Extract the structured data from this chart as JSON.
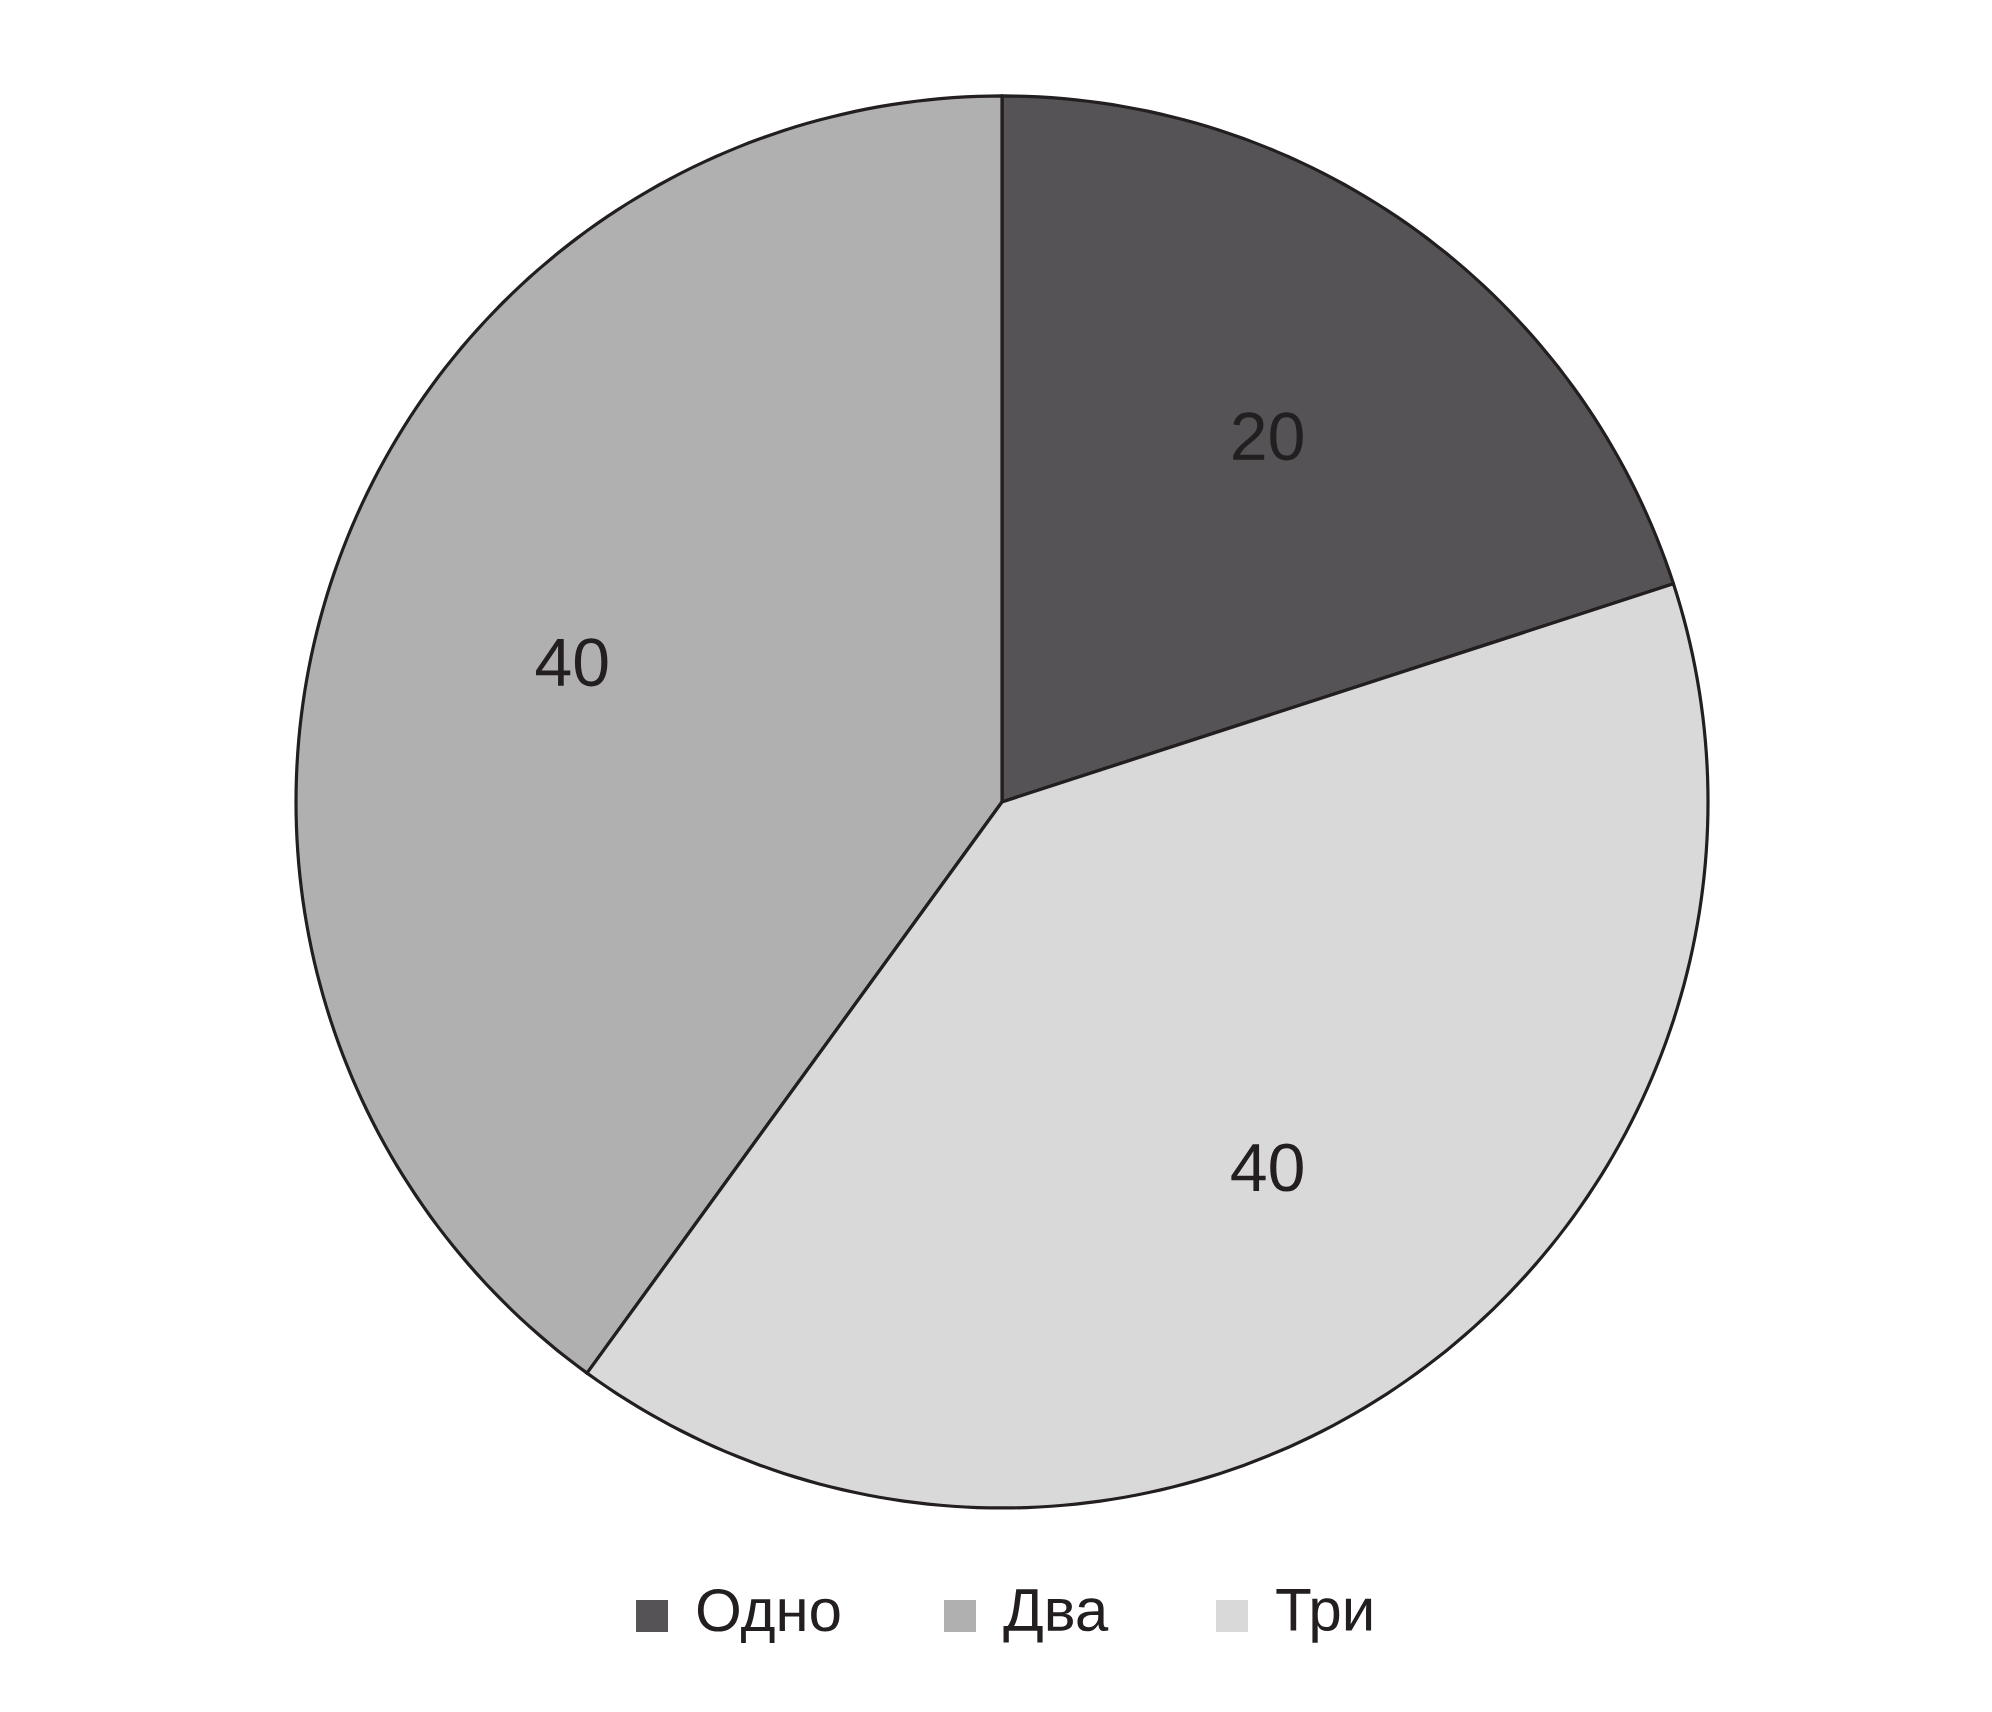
{
  "chart_data": {
    "type": "pie",
    "categories": [
      "Одно",
      "Два",
      "Три"
    ],
    "values": [
      20,
      40,
      40
    ],
    "colors": [
      "#555355",
      "#b1b0b1",
      "#d9d9d9"
    ],
    "data_labels": true,
    "legend": "bottom"
  }
}
